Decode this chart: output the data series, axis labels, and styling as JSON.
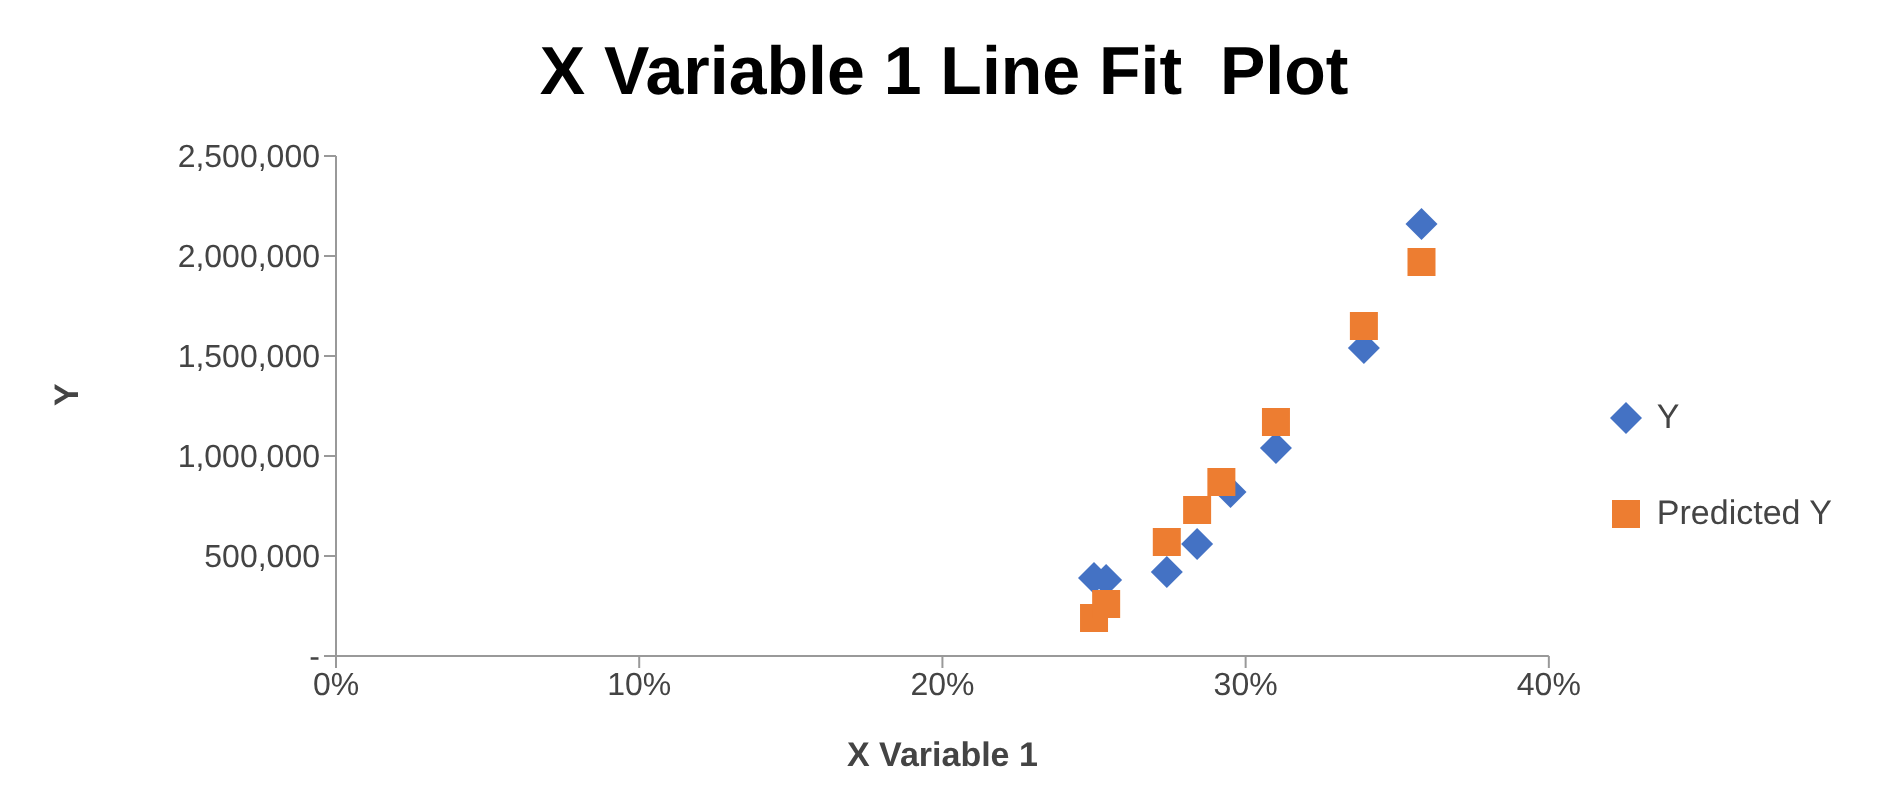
{
  "chart_data": {
    "type": "scatter",
    "title": "X Variable 1 Line Fit  Plot",
    "xlabel": "X Variable 1",
    "ylabel": "Y",
    "xlim": [
      0,
      40
    ],
    "xticks": [
      {
        "value": 0,
        "label": "0%"
      },
      {
        "value": 10,
        "label": "10%"
      },
      {
        "value": 20,
        "label": "20%"
      },
      {
        "value": 30,
        "label": "30%"
      },
      {
        "value": 40,
        "label": "40%"
      }
    ],
    "ylim": [
      0,
      2500000
    ],
    "yticks": [
      {
        "value": 0,
        "label": "-"
      },
      {
        "value": 500000,
        "label": "500,000"
      },
      {
        "value": 1000000,
        "label": "1,000,000"
      },
      {
        "value": 1500000,
        "label": "1,500,000"
      },
      {
        "value": 2000000,
        "label": "2,000,000"
      },
      {
        "value": 2500000,
        "label": "2,500,000"
      }
    ],
    "grid": false,
    "legend": "right",
    "series": [
      {
        "name": "Y",
        "color": "#4472c4",
        "marker": "diamond",
        "x": [
          25.0,
          25.4,
          27.4,
          28.4,
          29.5,
          31.0,
          33.9,
          35.8
        ],
        "values": [
          390000,
          380000,
          420000,
          560000,
          820000,
          1040000,
          1540000,
          2160000
        ]
      },
      {
        "name": "Predicted Y",
        "color": "#ed7d31",
        "marker": "square",
        "x": [
          25.0,
          25.4,
          27.4,
          28.4,
          29.2,
          31.0,
          33.9,
          35.8
        ],
        "values": [
          190000,
          260000,
          570000,
          730000,
          870000,
          1170000,
          1650000,
          1970000
        ]
      }
    ]
  }
}
